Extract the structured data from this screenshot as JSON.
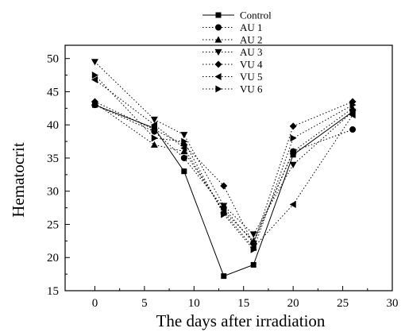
{
  "chart_data": {
    "type": "line",
    "xlabel": "The days after irradiation",
    "ylabel": "Hematocrit",
    "xlim": [
      -3,
      30
    ],
    "ylim": [
      15,
      52
    ],
    "xticks": [
      0,
      5,
      10,
      15,
      20,
      25,
      30
    ],
    "yticks": [
      15,
      20,
      25,
      30,
      35,
      40,
      45,
      50
    ],
    "grid": false,
    "legend_position": "top-right",
    "x": [
      0,
      6,
      9,
      13,
      16,
      20,
      26
    ],
    "series": [
      {
        "name": "Control",
        "marker": "square",
        "line": "solid",
        "values": [
          43.0,
          39.5,
          33.0,
          17.2,
          18.9,
          35.5,
          42.0
        ]
      },
      {
        "name": "AU 1",
        "marker": "circle",
        "line": "dotted",
        "values": [
          43.0,
          39.0,
          35.0,
          27.5,
          22.2,
          36.0,
          39.3
        ]
      },
      {
        "name": "AU 2",
        "marker": "triangle-up",
        "line": "dotted",
        "values": [
          43.3,
          37.0,
          36.0,
          27.0,
          22.5,
          36.0,
          42.5
        ]
      },
      {
        "name": "AU 3",
        "marker": "triangle-down",
        "line": "dotted",
        "values": [
          49.5,
          40.8,
          38.5,
          27.8,
          23.5,
          34.0,
          42.0
        ]
      },
      {
        "name": "VU 4",
        "marker": "diamond",
        "line": "dotted",
        "values": [
          43.5,
          39.3,
          37.0,
          30.8,
          22.0,
          39.8,
          43.5
        ]
      },
      {
        "name": "VU 5",
        "marker": "triangle-left",
        "line": "dotted",
        "values": [
          46.8,
          40.0,
          36.5,
          26.8,
          21.5,
          28.0,
          41.5
        ]
      },
      {
        "name": "VU 6",
        "marker": "triangle-right",
        "line": "dotted",
        "values": [
          47.5,
          38.0,
          37.5,
          26.5,
          21.2,
          38.0,
          43.0
        ]
      }
    ]
  }
}
